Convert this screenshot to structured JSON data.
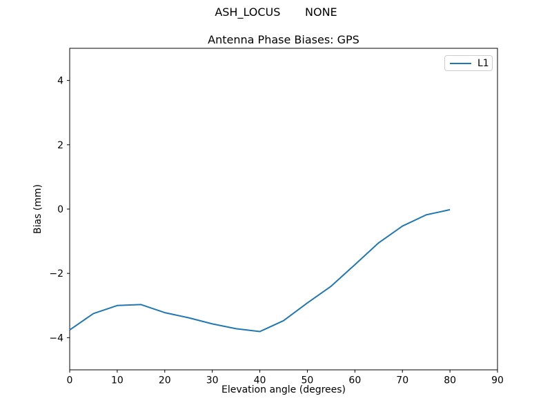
{
  "chart_data": {
    "type": "line",
    "suptitle": "ASH_LOCUS       NONE",
    "title": "Antenna Phase Biases: GPS",
    "xlabel": "Elevation angle (degrees)",
    "ylabel": "Bias (mm)",
    "xlim": [
      0,
      90
    ],
    "ylim": [
      -5,
      5
    ],
    "xticks": [
      0,
      10,
      20,
      30,
      40,
      50,
      60,
      70,
      80,
      90
    ],
    "xtick_labels": [
      "0",
      "10",
      "20",
      "30",
      "40",
      "50",
      "60",
      "70",
      "80",
      "90"
    ],
    "yticks": [
      4,
      2,
      0,
      -2,
      -4
    ],
    "ytick_labels": [
      "4",
      "2",
      "0",
      "−2",
      "−4"
    ],
    "grid": false,
    "legend_position": "upper right",
    "x": [
      0,
      5,
      10,
      15,
      20,
      25,
      30,
      35,
      40,
      45,
      50,
      55,
      60,
      65,
      70,
      75,
      80
    ],
    "series": [
      {
        "name": "L1",
        "color": "#1f77b4",
        "values": [
          -3.76,
          -3.25,
          -3.0,
          -2.97,
          -3.22,
          -3.38,
          -3.57,
          -3.72,
          -3.81,
          -3.47,
          -2.92,
          -2.4,
          -1.73,
          -1.05,
          -0.53,
          -0.18,
          -0.02
        ]
      }
    ]
  },
  "colors": {
    "background": "#ffffff",
    "spine": "#000000",
    "tick": "#000000",
    "legend_border": "#cccccc",
    "line": "#1f77b4"
  }
}
